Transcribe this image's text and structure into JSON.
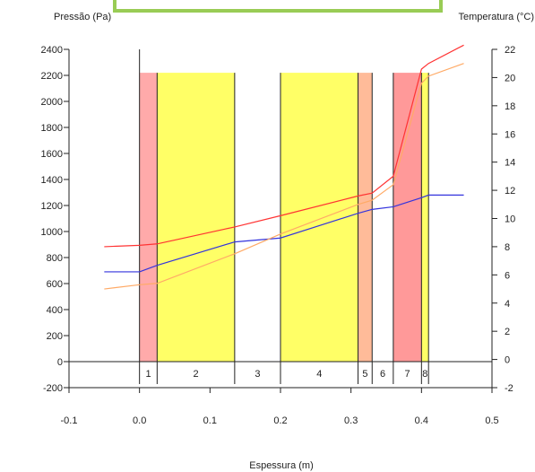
{
  "chart_data": {
    "type": "line",
    "y_left_label": "Pressão (Pa)",
    "y_right_label": "Temperatura (°C)",
    "xlabel": "Espessura (m)",
    "xlim": [
      -0.1,
      0.5
    ],
    "y_left_lim": [
      -200,
      2400
    ],
    "y_right_lim": [
      -2,
      22
    ],
    "x_ticks": [
      "-0.1",
      "0.0",
      "0.1",
      "0.2",
      "0.3",
      "0.4",
      "0.5"
    ],
    "y_left_ticks": [
      "-200",
      "0",
      "200",
      "400",
      "600",
      "800",
      "1000",
      "1200",
      "1400",
      "1600",
      "1800",
      "2000",
      "2200",
      "2400"
    ],
    "y_right_ticks": [
      "-2",
      "0",
      "2",
      "4",
      "6",
      "8",
      "10",
      "12",
      "14",
      "16",
      "18",
      "20",
      "22"
    ],
    "layers": [
      {
        "label": "1",
        "x0": 0.0,
        "x1": 0.025,
        "color": "#ffaaaa"
      },
      {
        "label": "2",
        "x0": 0.025,
        "x1": 0.135,
        "color": "#ffff66"
      },
      {
        "label": "3",
        "x0": 0.135,
        "x1": 0.2,
        "color": "#ffffff"
      },
      {
        "label": "4",
        "x0": 0.2,
        "x1": 0.31,
        "color": "#ffff66"
      },
      {
        "label": "5",
        "x0": 0.31,
        "x1": 0.33,
        "color": "#ffbb99"
      },
      {
        "label": "6",
        "x0": 0.33,
        "x1": 0.36,
        "color": "#ffffff"
      },
      {
        "label": "7",
        "x0": 0.36,
        "x1": 0.4,
        "color": "#ff9999"
      },
      {
        "label": "8",
        "x0": 0.4,
        "x1": 0.41,
        "color": "#ffff66"
      }
    ],
    "layer_top": 2220,
    "series": [
      {
        "axis": "left",
        "color": "#3333dd",
        "x": [
          -0.05,
          0.0,
          0.025,
          0.135,
          0.2,
          0.31,
          0.33,
          0.36,
          0.4,
          0.41,
          0.46
        ],
        "y": [
          690,
          690,
          740,
          920,
          950,
          1140,
          1170,
          1190,
          1260,
          1280,
          1280
        ]
      },
      {
        "axis": "right",
        "color": "#ff3333",
        "x": [
          -0.05,
          0.0,
          0.025,
          0.135,
          0.2,
          0.31,
          0.33,
          0.36,
          0.4,
          0.41,
          0.46
        ],
        "y": [
          8.0,
          8.1,
          8.2,
          9.4,
          10.2,
          11.6,
          11.8,
          13.0,
          20.6,
          21.0,
          22.3
        ]
      },
      {
        "axis": "right",
        "color": "#ffaa66",
        "x": [
          -0.05,
          0.0,
          0.025,
          0.135,
          0.2,
          0.31,
          0.33,
          0.36,
          0.4,
          0.41,
          0.46
        ],
        "y": [
          5.0,
          5.3,
          5.4,
          7.5,
          8.9,
          11.0,
          11.3,
          12.4,
          19.6,
          20.1,
          21.0
        ]
      }
    ]
  }
}
